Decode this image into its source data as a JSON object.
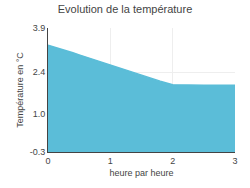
{
  "chart_data": {
    "type": "area",
    "title": "Evolution de la température",
    "xlabel": "heure par heure",
    "ylabel": "Température en °C",
    "x": [
      0,
      0.1,
      0.2,
      0.3,
      0.4,
      0.5,
      0.6,
      0.7,
      0.8,
      0.9,
      1.0,
      1.1,
      1.2,
      1.3,
      1.4,
      1.5,
      1.6,
      1.7,
      1.8,
      1.9,
      2.0,
      2.5,
      3.0
    ],
    "values": [
      3.32,
      3.26,
      3.2,
      3.13,
      3.06,
      2.99,
      2.92,
      2.85,
      2.78,
      2.71,
      2.64,
      2.57,
      2.5,
      2.43,
      2.37,
      2.3,
      2.23,
      2.16,
      2.1,
      2.04,
      1.98,
      1.96,
      1.96
    ],
    "color": "#5bbdd8",
    "xlim": [
      0,
      3
    ],
    "ylim": [
      -0.3,
      3.9
    ],
    "xticks": [
      0,
      1,
      2,
      3
    ],
    "yticks": [
      -0.3,
      {
        "value": 1.0,
        "label": "1.0"
      },
      2.4,
      3.9
    ],
    "grid": true
  }
}
